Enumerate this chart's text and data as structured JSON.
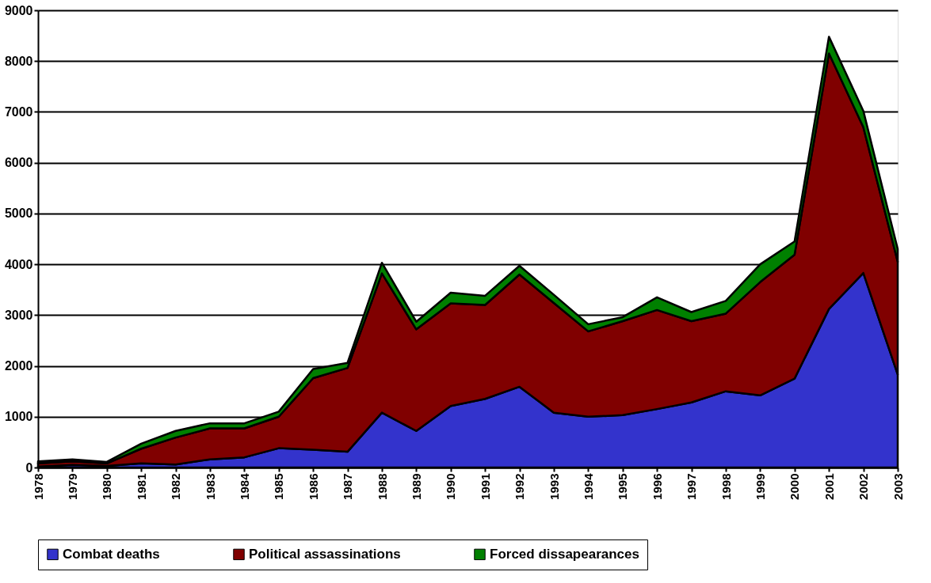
{
  "chart_data": {
    "type": "area",
    "stacked": true,
    "x": [
      1978,
      1979,
      1980,
      1981,
      1982,
      1983,
      1984,
      1985,
      1986,
      1987,
      1988,
      1989,
      1990,
      1991,
      1992,
      1993,
      1994,
      1995,
      1996,
      1997,
      1998,
      1999,
      2000,
      2001,
      2002,
      2003
    ],
    "series": [
      {
        "name": "Combat deaths",
        "color": "#3333cc",
        "values": [
          20,
          50,
          30,
          80,
          60,
          160,
          200,
          380,
          350,
          310,
          1080,
          720,
          1210,
          1350,
          1590,
          1080,
          1000,
          1030,
          1150,
          1280,
          1500,
          1420,
          1750,
          3120,
          3830,
          1830
        ]
      },
      {
        "name": "Political assassinations",
        "color": "#800000",
        "values": [
          60,
          70,
          50,
          290,
          530,
          610,
          570,
          620,
          1410,
          1650,
          2740,
          2000,
          2020,
          1850,
          2210,
          2160,
          1680,
          1850,
          1950,
          1600,
          1530,
          2230,
          2440,
          5030,
          2870,
          2220
        ]
      },
      {
        "name": "Forced dissapearances",
        "color": "#008000",
        "values": [
          40,
          40,
          30,
          100,
          130,
          100,
          100,
          100,
          180,
          100,
          210,
          150,
          210,
          180,
          170,
          160,
          140,
          80,
          250,
          180,
          250,
          350,
          260,
          330,
          320,
          250
        ]
      }
    ],
    "xlim": [
      1978,
      2003
    ],
    "xticks": [
      1978,
      1979,
      1980,
      1981,
      1982,
      1983,
      1984,
      1985,
      1986,
      1987,
      1988,
      1989,
      1990,
      1991,
      1992,
      1993,
      1994,
      1995,
      1996,
      1997,
      1998,
      1999,
      2000,
      2001,
      2002,
      2003
    ],
    "ylim": [
      0,
      9000
    ],
    "yticks": [
      0,
      1000,
      2000,
      3000,
      4000,
      5000,
      6000,
      7000,
      8000,
      9000
    ],
    "grid": "y",
    "legend": "bottom"
  }
}
